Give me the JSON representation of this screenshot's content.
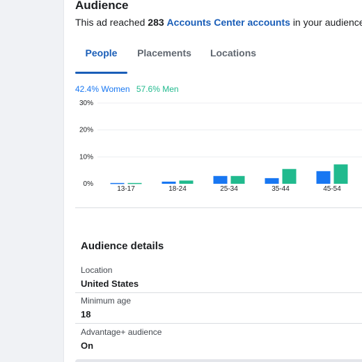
{
  "audience": {
    "heading": "Audience",
    "summary_prefix": "This ad reached",
    "count": "283",
    "link_text": "Accounts Center accounts",
    "summary_suffix": "in your audience."
  },
  "tabs": [
    {
      "label": "People",
      "active": true
    },
    {
      "label": "Placements",
      "active": false
    },
    {
      "label": "Locations",
      "active": false
    }
  ],
  "legend": {
    "women": "42.4% Women",
    "men": "57.6% Men"
  },
  "colors": {
    "women": "#1877f2",
    "men": "#21ba8e",
    "accent": "#1a5eb8"
  },
  "chart_data": {
    "type": "bar",
    "categories": [
      "13-17",
      "18-24",
      "25-34",
      "35-44",
      "45-54"
    ],
    "series": [
      {
        "name": "Women",
        "values": [
          0.3,
          0.8,
          2.9,
          2.1,
          4.7
        ]
      },
      {
        "name": "Men",
        "values": [
          0.3,
          1.2,
          2.9,
          5.5,
          7.2
        ]
      }
    ],
    "y_ticks": [
      "0%",
      "10%",
      "20%",
      "30%"
    ],
    "ylim": [
      0,
      30
    ],
    "grid": true
  },
  "details": {
    "title": "Audience details",
    "items": [
      {
        "label": "Location",
        "value": "United States"
      },
      {
        "label": "Minimum age",
        "value": "18"
      },
      {
        "label": "Advantage+ audience",
        "value": "On"
      }
    ]
  }
}
